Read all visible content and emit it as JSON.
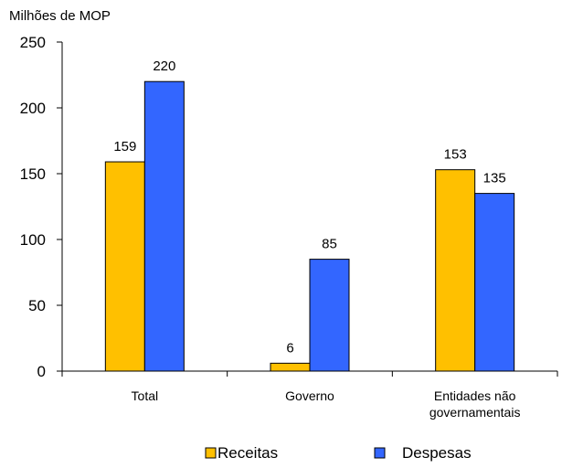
{
  "chart_data": {
    "type": "bar",
    "unit_label": "Milhões de MOP",
    "categories": [
      [
        "Total"
      ],
      [
        "Governo"
      ],
      [
        "Entidades não",
        "governamentais"
      ]
    ],
    "series": [
      {
        "name": "Receitas",
        "values": [
          159,
          6,
          153
        ],
        "color": "#FFC000"
      },
      {
        "name": "Despesas",
        "values": [
          220,
          85,
          135
        ],
        "color": "#3366FF"
      }
    ],
    "ylim": [
      0,
      250
    ],
    "yticks": [
      0,
      50,
      100,
      150,
      200,
      250
    ],
    "grid": false,
    "legend_position": "bottom"
  }
}
